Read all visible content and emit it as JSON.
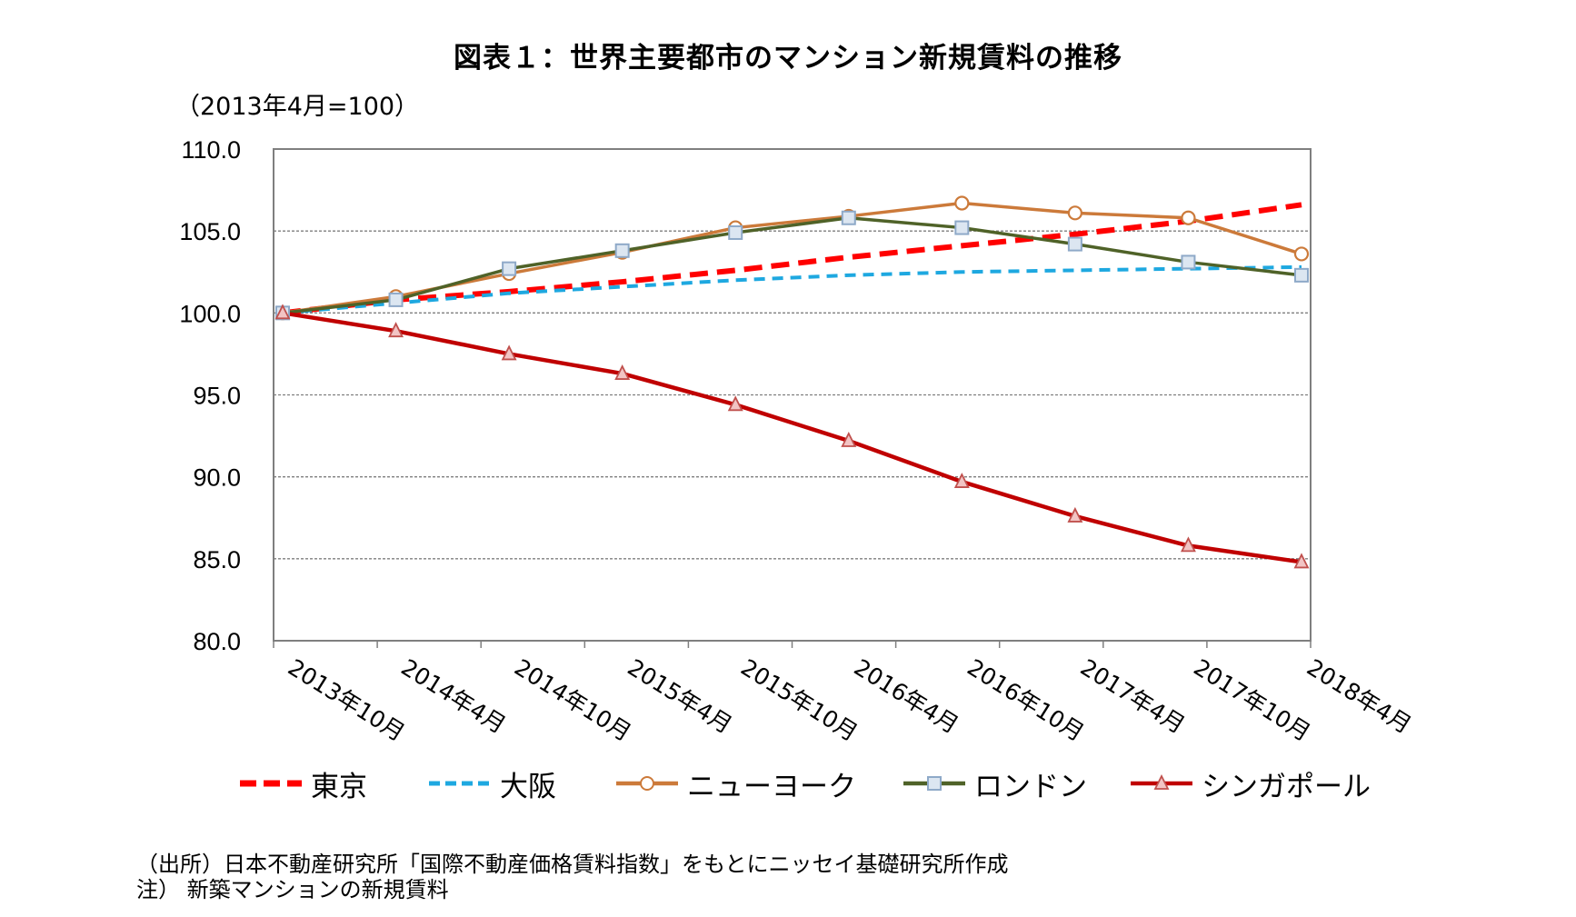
{
  "title": "図表１：世界主要都市のマンション新規賃料の推移",
  "unit_label": "（2013年4月=100）",
  "source_lines": [
    "（出所）日本不動産研究所「国際不動産価格賃料指数」をもとにニッセイ基礎研究所作成",
    "注）  新築マンションの新規賃料"
  ],
  "chart_data": {
    "type": "line",
    "categories": [
      "2013年10月",
      "2014年4月",
      "2014年10月",
      "2015年4月",
      "2015年10月",
      "2016年4月",
      "2016年10月",
      "2017年4月",
      "2017年10月",
      "2018年4月"
    ],
    "ylim": [
      80,
      110
    ],
    "yticks": [
      "80.0",
      "85.0",
      "90.0",
      "95.0",
      "100.0",
      "105.0",
      "110.0"
    ],
    "grid": true,
    "legend_position": "bottom",
    "series": [
      {
        "name": "東京",
        "color": "#ff0000",
        "dash": "dashed",
        "marker": "none",
        "values": [
          100.0,
          100.8,
          101.3,
          101.9,
          102.6,
          103.4,
          104.1,
          104.8,
          105.6,
          106.6
        ]
      },
      {
        "name": "大阪",
        "color": "#1ea8e0",
        "dash": "dashed",
        "marker": "none",
        "values": [
          100.0,
          100.6,
          101.2,
          101.6,
          102.0,
          102.3,
          102.5,
          102.6,
          102.7,
          102.8
        ]
      },
      {
        "name": "ニューヨーク",
        "color": "#cc7a3a",
        "dash": "solid",
        "marker": "circle",
        "values": [
          100.0,
          101.0,
          102.4,
          103.7,
          105.2,
          105.9,
          106.7,
          106.1,
          105.8,
          103.6
        ]
      },
      {
        "name": "ロンドン",
        "color": "#4f6228",
        "dash": "solid",
        "marker": "square",
        "values": [
          100.0,
          100.8,
          102.7,
          103.8,
          104.9,
          105.8,
          105.2,
          104.2,
          103.1,
          102.3
        ]
      },
      {
        "name": "シンガポール",
        "color": "#c00000",
        "dash": "solid",
        "marker": "triangle",
        "values": [
          100.0,
          98.9,
          97.5,
          96.3,
          94.4,
          92.2,
          89.7,
          87.6,
          85.8,
          84.8
        ]
      }
    ]
  }
}
